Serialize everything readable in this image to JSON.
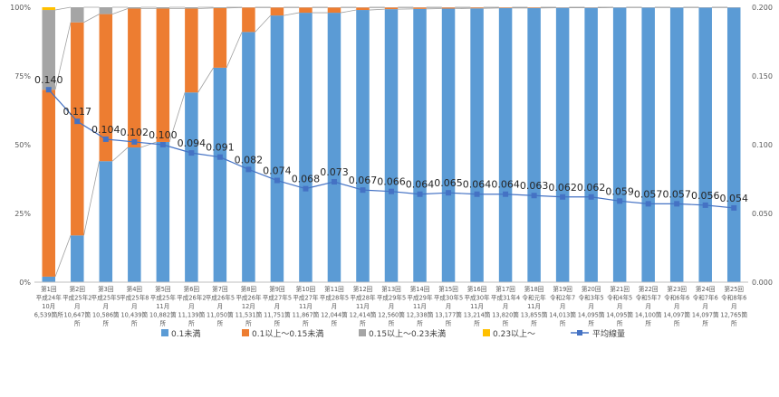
{
  "chart_data": {
    "type": "bar",
    "stacked": true,
    "categories": [
      [
        "第1回",
        "平成24年",
        "10月",
        "6,539箇所"
      ],
      [
        "第2回",
        "平成25年2",
        "月",
        "10,647箇",
        "所"
      ],
      [
        "第3回",
        "平成25年5",
        "月",
        "10,586箇",
        "所"
      ],
      [
        "第4回",
        "平成25年8",
        "月",
        "10,439箇",
        "所"
      ],
      [
        "第5回",
        "平成25年",
        "11月",
        "10,882箇",
        "所"
      ],
      [
        "第6回",
        "平成26年2",
        "月",
        "11,139箇",
        "所"
      ],
      [
        "第7回",
        "平成26年5",
        "月",
        "11,050箇",
        "所"
      ],
      [
        "第8回",
        "平成26年",
        "12月",
        "11,531箇",
        "所"
      ],
      [
        "第9回",
        "平成27年5",
        "月",
        "11,751箇",
        "所"
      ],
      [
        "第10回",
        "平成27年",
        "11月",
        "11,867箇",
        "所"
      ],
      [
        "第11回",
        "平成28年5",
        "月",
        "12,044箇",
        "所"
      ],
      [
        "第12回",
        "平成28年",
        "11月",
        "12,414箇",
        "所"
      ],
      [
        "第13回",
        "平成29年5",
        "月",
        "12,560箇",
        "所"
      ],
      [
        "第14回",
        "平成29年",
        "11月",
        "12,338箇",
        "所"
      ],
      [
        "第15回",
        "平成30年5",
        "月",
        "13,177箇",
        "所"
      ],
      [
        "第16回",
        "平成30年",
        "11月",
        "13,214箇",
        "所"
      ],
      [
        "第17回",
        "平成31年4",
        "月",
        "13,820箇",
        "所"
      ],
      [
        "第18回",
        "令和元年",
        "11月",
        "13,855箇",
        "所"
      ],
      [
        "第19回",
        "令和2年7",
        "月",
        "14,013箇",
        "所"
      ],
      [
        "第20回",
        "令和3年5",
        "月",
        "14,095箇",
        "所"
      ],
      [
        "第21回",
        "令和4年5",
        "月",
        "14,095箇",
        "所"
      ],
      [
        "第22回",
        "令和5年7",
        "月",
        "14,100箇",
        "所"
      ],
      [
        "第23回",
        "令和6年6",
        "月",
        "14,097箇",
        "所"
      ],
      [
        "第24回",
        "令和7年6",
        "月",
        "14,097箇",
        "所"
      ],
      [
        "第25回",
        "令和8年6",
        "月",
        "12,765箇",
        "所"
      ]
    ],
    "series": [
      {
        "name": "0.1未満",
        "color": "#5b9bd5",
        "axis": "left",
        "values": [
          2,
          17,
          44,
          49,
          51,
          69,
          78,
          91,
          97,
          98,
          98,
          99,
          99.3,
          99.4,
          99.5,
          99.6,
          99.7,
          99.7,
          99.8,
          99.8,
          99.9,
          99.9,
          99.9,
          99.9,
          99.9
        ]
      },
      {
        "name": "0.1以上～0.15未満",
        "color": "#ed7d31",
        "axis": "left",
        "values": [
          68,
          77.5,
          53.5,
          50.5,
          48.5,
          30.5,
          21.7,
          8.9,
          2.9,
          1.9,
          1.9,
          0.9,
          0.6,
          0.5,
          0.4,
          0.3,
          0.2,
          0.2,
          0.1,
          0.1,
          0.05,
          0.05,
          0.05,
          0.05,
          0.05
        ]
      },
      {
        "name": "0.15以上～0.23未満",
        "color": "#a5a5a5",
        "axis": "left",
        "values": [
          29,
          5.5,
          2.5,
          0.5,
          0.5,
          0.5,
          0.3,
          0.1,
          0.1,
          0.1,
          0.1,
          0.1,
          0.1,
          0.1,
          0.1,
          0.1,
          0.1,
          0.1,
          0.1,
          0.1,
          0.05,
          0.05,
          0.05,
          0.05,
          0.05
        ]
      },
      {
        "name": "0.23以上～",
        "color": "#ffc000",
        "axis": "left",
        "values": [
          1,
          0,
          0,
          0,
          0,
          0,
          0,
          0,
          0,
          0,
          0,
          0,
          0,
          0,
          0,
          0,
          0,
          0,
          0,
          0,
          0,
          0,
          0,
          0,
          0
        ]
      },
      {
        "name": "平均線量",
        "color": "#4472c4",
        "axis": "right",
        "type": "line",
        "values": [
          0.14,
          0.117,
          0.104,
          0.102,
          0.1,
          0.094,
          0.091,
          0.082,
          0.074,
          0.068,
          0.073,
          0.067,
          0.066,
          0.064,
          0.065,
          0.064,
          0.064,
          0.063,
          0.062,
          0.062,
          0.059,
          0.057,
          0.057,
          0.056,
          0.054
        ],
        "labels": [
          "0.140",
          "0.117",
          "0.104",
          "0.102",
          "0.100",
          "0.094",
          "0.091",
          "0.082",
          "0.074",
          "0.068",
          "0.073",
          "0.067",
          "0.066",
          "0.064",
          "0.065",
          "0.064",
          "0.064",
          "0.063",
          "0.062",
          "0.062",
          "0.059",
          "0.057",
          "0.057",
          "0.056",
          "0.054"
        ]
      }
    ],
    "y_left": {
      "ylim": [
        0,
        100
      ],
      "ticks": [
        0,
        25,
        50,
        75,
        100
      ],
      "tick_labels": [
        "0%",
        "25%",
        "50%",
        "75%",
        "100%"
      ]
    },
    "y_right": {
      "ylim": [
        0,
        0.2
      ],
      "ticks": [
        0,
        0.05,
        0.1,
        0.15,
        0.2
      ],
      "tick_labels": [
        "0.000",
        "0.050",
        "0.100",
        "0.150",
        "0.200"
      ]
    },
    "series_lines": true,
    "grid": false,
    "legend_position": "bottom"
  }
}
